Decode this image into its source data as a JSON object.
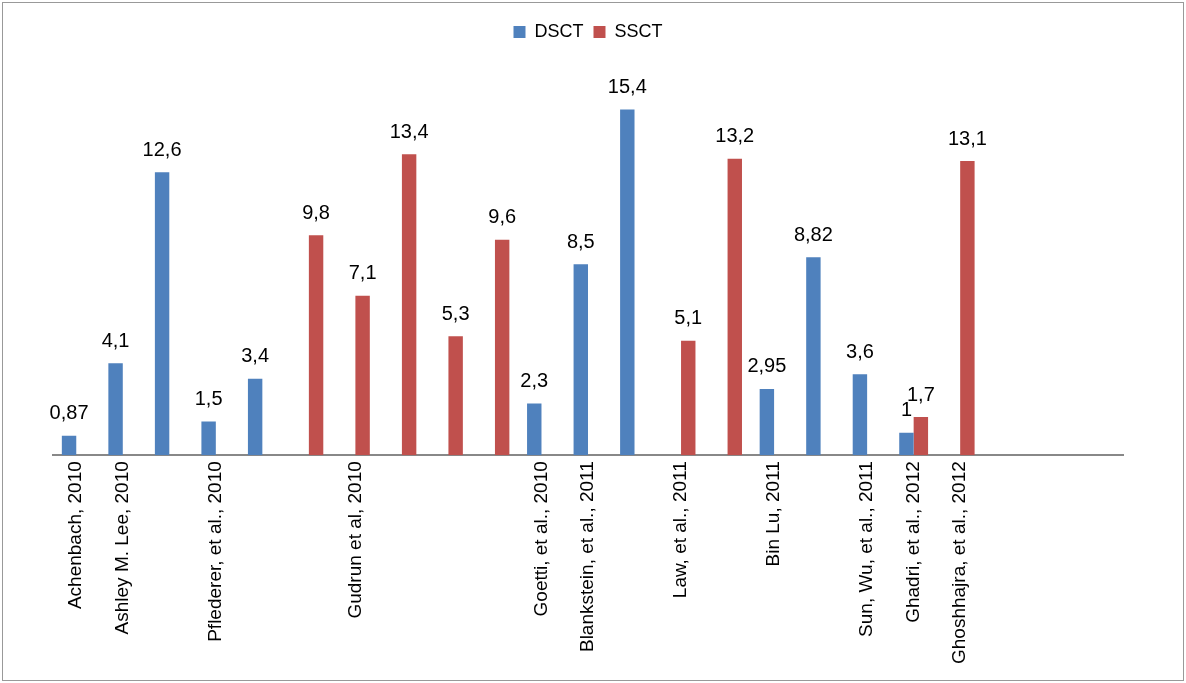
{
  "chart_data": {
    "type": "bar",
    "categories": [
      "Achenbach, 2010",
      "Ashley M. Lee, 2010",
      null,
      "Pflederer, et al., 2010",
      null,
      null,
      "Gudrun et al, 2010",
      null,
      null,
      null,
      "Goetti, et al., 2010",
      "Blankstein, et al., 2011",
      null,
      "Law, et al., 2011",
      null,
      "Bin Lu, 2011",
      null,
      "Sun, Wu, et al., 2011",
      "Ghadri, et al., 2012",
      "Ghoshhajra, et al., 2012",
      null,
      null,
      null
    ],
    "series": [
      {
        "name": "DSCT",
        "color": "#4f81bd",
        "values": [
          0.87,
          4.1,
          12.6,
          1.5,
          3.4,
          null,
          null,
          null,
          null,
          null,
          2.3,
          8.5,
          15.4,
          null,
          null,
          2.95,
          8.82,
          3.6,
          1,
          null,
          null,
          null,
          null
        ],
        "value_labels": [
          "0,87",
          "4,1",
          "12,6",
          "1,5",
          "3,4",
          null,
          null,
          null,
          null,
          null,
          "2,3",
          "8,5",
          "15,4",
          null,
          null,
          "2,95",
          "8,82",
          "3,6",
          "1",
          null,
          null,
          null,
          null
        ]
      },
      {
        "name": "SSCT",
        "color": "#c0504d",
        "values": [
          null,
          null,
          null,
          null,
          null,
          9.8,
          7.1,
          13.4,
          5.3,
          9.6,
          null,
          null,
          null,
          5.1,
          13.2,
          null,
          null,
          null,
          1.7,
          13.1,
          null,
          null,
          null
        ],
        "value_labels": [
          null,
          null,
          null,
          null,
          null,
          "9,8",
          "7,1",
          "13,4",
          "5,3",
          "9,6",
          null,
          null,
          null,
          "5,1",
          "13,2",
          null,
          null,
          null,
          "1,7",
          "13,1",
          null,
          null,
          null
        ]
      }
    ],
    "legend": "top",
    "grid": false
  }
}
